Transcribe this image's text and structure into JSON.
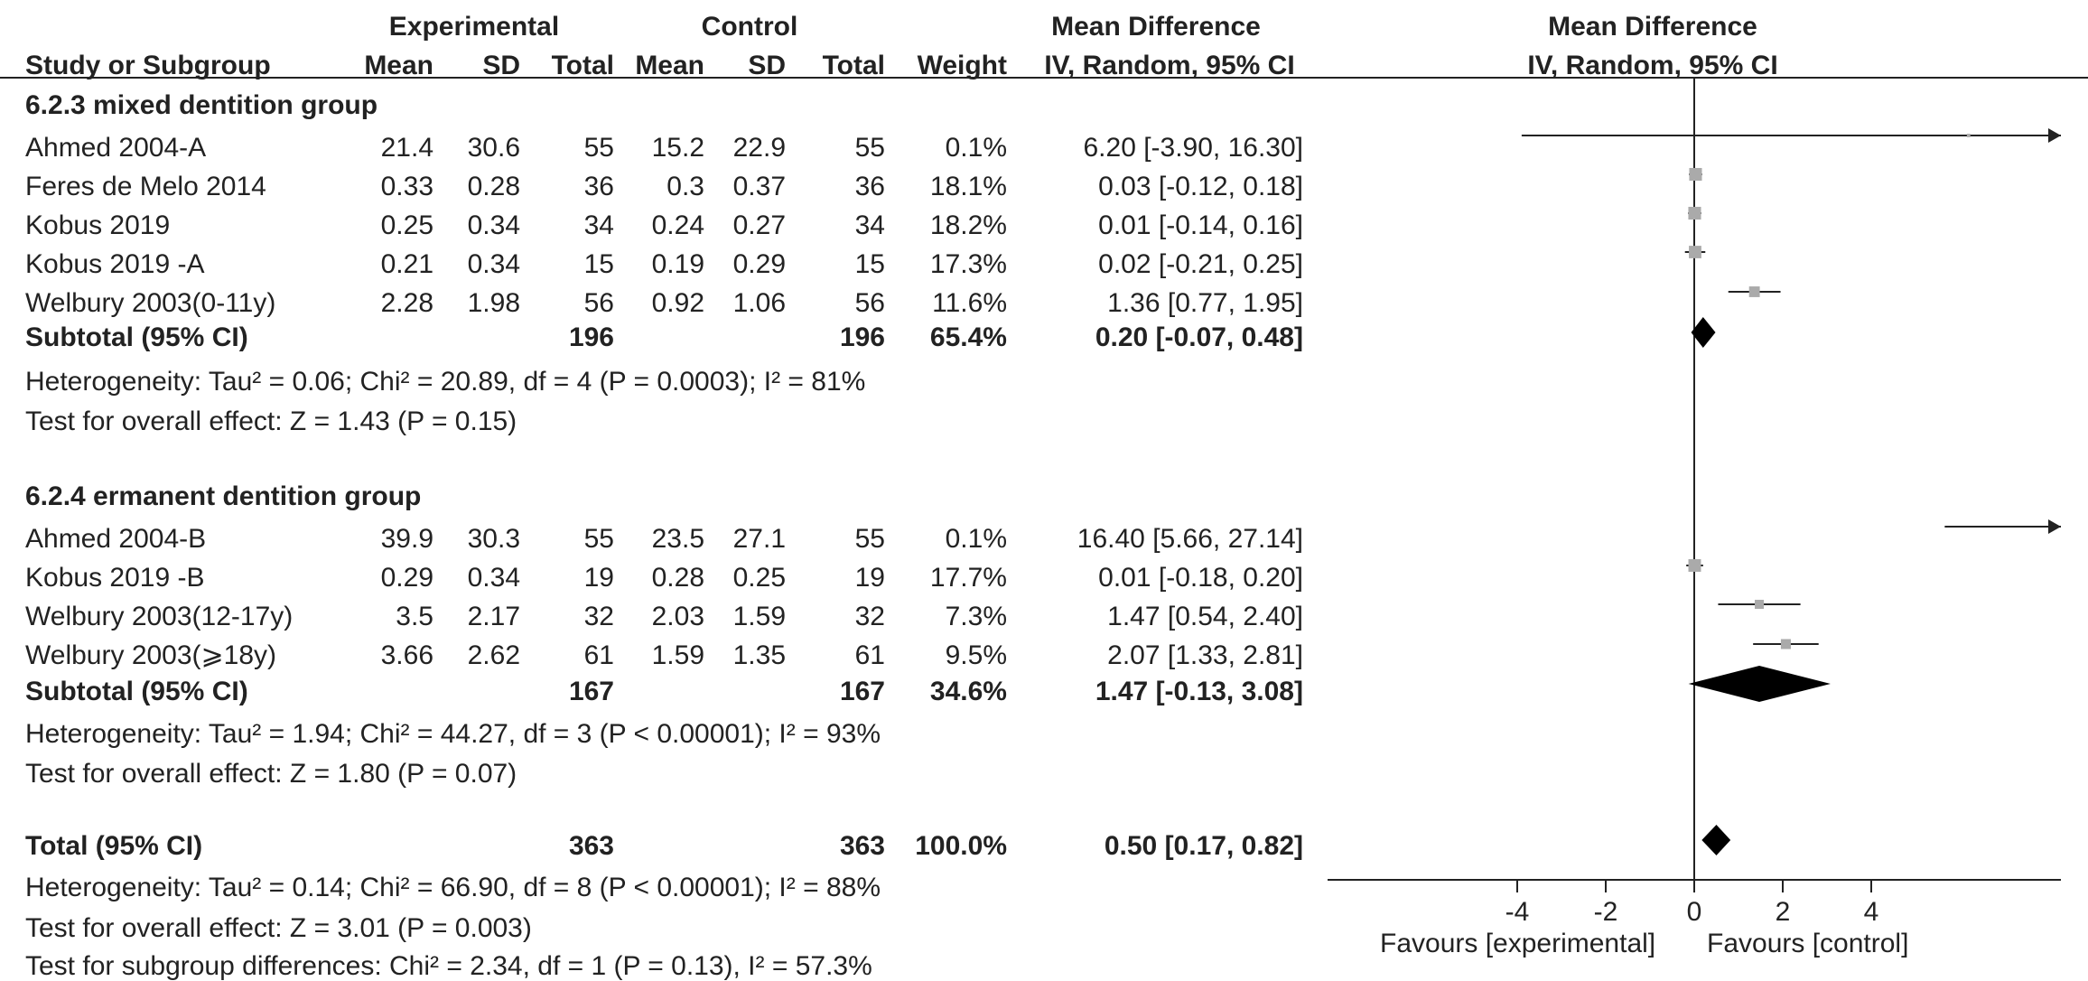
{
  "header": {
    "group_experimental": "Experimental",
    "group_control": "Control",
    "md_title_table": "Mean Difference",
    "md_subtitle_table": "IV, Random, 95% CI",
    "md_title_plot": "Mean Difference",
    "md_subtitle_plot": "IV, Random, 95% CI",
    "col_study": "Study or Subgroup",
    "col_exp_mean": "Mean",
    "col_exp_sd": "SD",
    "col_exp_total": "Total",
    "col_ctl_mean": "Mean",
    "col_ctl_sd": "SD",
    "col_ctl_total": "Total",
    "col_weight": "Weight"
  },
  "subgroups": [
    {
      "title": "6.2.3 mixed dentition group",
      "studies": [
        {
          "name": "Ahmed 2004-A",
          "e_mean": "21.4",
          "e_sd": "30.6",
          "e_total": "55",
          "c_mean": "15.2",
          "c_sd": "22.9",
          "c_total": "55",
          "weight": "0.1%",
          "ci": "6.20 [-3.90, 16.30]"
        },
        {
          "name": "Feres de Melo 2014",
          "e_mean": "0.33",
          "e_sd": "0.28",
          "e_total": "36",
          "c_mean": "0.3",
          "c_sd": "0.37",
          "c_total": "36",
          "weight": "18.1%",
          "ci": "0.03 [-0.12, 0.18]"
        },
        {
          "name": "Kobus 2019",
          "e_mean": "0.25",
          "e_sd": "0.34",
          "e_total": "34",
          "c_mean": "0.24",
          "c_sd": "0.27",
          "c_total": "34",
          "weight": "18.2%",
          "ci": "0.01 [-0.14, 0.16]"
        },
        {
          "name": "Kobus 2019 -A",
          "e_mean": "0.21",
          "e_sd": "0.34",
          "e_total": "15",
          "c_mean": "0.19",
          "c_sd": "0.29",
          "c_total": "15",
          "weight": "17.3%",
          "ci": "0.02 [-0.21, 0.25]"
        },
        {
          "name": "Welbury 2003(0-11y)",
          "e_mean": "2.28",
          "e_sd": "1.98",
          "e_total": "56",
          "c_mean": "0.92",
          "c_sd": "1.06",
          "c_total": "56",
          "weight": "11.6%",
          "ci": "1.36 [0.77, 1.95]"
        }
      ],
      "subtotal": {
        "label": "Subtotal (95% CI)",
        "e_total": "196",
        "c_total": "196",
        "weight": "65.4%",
        "ci": "0.20 [-0.07, 0.48]"
      },
      "heterogeneity": "Heterogeneity: Tau² = 0.06; Chi² = 20.89, df = 4 (P = 0.0003); I² = 81%",
      "overall_effect": "Test for overall effect: Z = 1.43 (P = 0.15)"
    },
    {
      "title": "6.2.4 ermanent dentition group",
      "studies": [
        {
          "name": "Ahmed 2004-B",
          "e_mean": "39.9",
          "e_sd": "30.3",
          "e_total": "55",
          "c_mean": "23.5",
          "c_sd": "27.1",
          "c_total": "55",
          "weight": "0.1%",
          "ci": "16.40 [5.66, 27.14]"
        },
        {
          "name": "Kobus 2019 -B",
          "e_mean": "0.29",
          "e_sd": "0.34",
          "e_total": "19",
          "c_mean": "0.28",
          "c_sd": "0.25",
          "c_total": "19",
          "weight": "17.7%",
          "ci": "0.01 [-0.18, 0.20]"
        },
        {
          "name": "Welbury 2003(12-17y)",
          "e_mean": "3.5",
          "e_sd": "2.17",
          "e_total": "32",
          "c_mean": "2.03",
          "c_sd": "1.59",
          "c_total": "32",
          "weight": "7.3%",
          "ci": "1.47 [0.54, 2.40]"
        },
        {
          "name": "Welbury 2003(⩾18y)",
          "e_mean": "3.66",
          "e_sd": "2.62",
          "e_total": "61",
          "c_mean": "1.59",
          "c_sd": "1.35",
          "c_total": "61",
          "weight": "9.5%",
          "ci": "2.07 [1.33, 2.81]"
        }
      ],
      "subtotal": {
        "label": "Subtotal (95% CI)",
        "e_total": "167",
        "c_total": "167",
        "weight": "34.6%",
        "ci": "1.47 [-0.13, 3.08]"
      },
      "heterogeneity": "Heterogeneity: Tau² = 1.94; Chi² = 44.27, df = 3 (P < 0.00001); I² = 93%",
      "overall_effect": "Test for overall effect: Z = 1.80 (P = 0.07)"
    }
  ],
  "total": {
    "label": "Total (95% CI)",
    "e_total": "363",
    "c_total": "363",
    "weight": "100.0%",
    "ci": "0.50 [0.17, 0.82]",
    "heterogeneity": "Heterogeneity: Tau² = 0.14; Chi² = 66.90, df = 8 (P < 0.00001); I² = 88%",
    "overall_effect": "Test for overall effect: Z = 3.01 (P = 0.003)",
    "subgroup_differences": "Test for subgroup differences: Chi² = 2.34, df = 1 (P = 0.13), I² = 57.3%"
  },
  "axis": {
    "favours_left": "Favours [experimental]",
    "favours_right": "Favours [control]"
  },
  "colors": {
    "text": "#222222",
    "marker": "#aaaaaa",
    "diamond": "#000000",
    "line": "#222222"
  },
  "chart_data": {
    "type": "forest",
    "xlim": [
      -4,
      4
    ],
    "xticks": [
      -4,
      -2,
      0,
      2,
      4
    ],
    "studies": [
      {
        "label": "Ahmed 2004-A",
        "md": 6.2,
        "lo": -3.9,
        "hi": 16.3,
        "weight": 0.1
      },
      {
        "label": "Feres de Melo 2014",
        "md": 0.03,
        "lo": -0.12,
        "hi": 0.18,
        "weight": 18.1
      },
      {
        "label": "Kobus 2019",
        "md": 0.01,
        "lo": -0.14,
        "hi": 0.16,
        "weight": 18.2
      },
      {
        "label": "Kobus 2019 -A",
        "md": 0.02,
        "lo": -0.21,
        "hi": 0.25,
        "weight": 17.3
      },
      {
        "label": "Welbury 2003(0-11y)",
        "md": 1.36,
        "lo": 0.77,
        "hi": 1.95,
        "weight": 11.6
      },
      {
        "label": "Ahmed 2004-B",
        "md": 16.4,
        "lo": 5.66,
        "hi": 27.14,
        "weight": 0.1
      },
      {
        "label": "Kobus 2019 -B",
        "md": 0.01,
        "lo": -0.18,
        "hi": 0.2,
        "weight": 17.7
      },
      {
        "label": "Welbury 2003(12-17y)",
        "md": 1.47,
        "lo": 0.54,
        "hi": 2.4,
        "weight": 7.3
      },
      {
        "label": "Welbury 2003(⩾18y)",
        "md": 2.07,
        "lo": 1.33,
        "hi": 2.81,
        "weight": 9.5
      }
    ],
    "pooled": [
      {
        "label": "Subtotal (95% CI)",
        "md": 0.2,
        "lo": -0.07,
        "hi": 0.48
      },
      {
        "label": "Subtotal (95% CI)",
        "md": 1.47,
        "lo": -0.13,
        "hi": 3.08
      },
      {
        "label": "Total (95% CI)",
        "md": 0.5,
        "lo": 0.17,
        "hi": 0.82
      }
    ]
  }
}
